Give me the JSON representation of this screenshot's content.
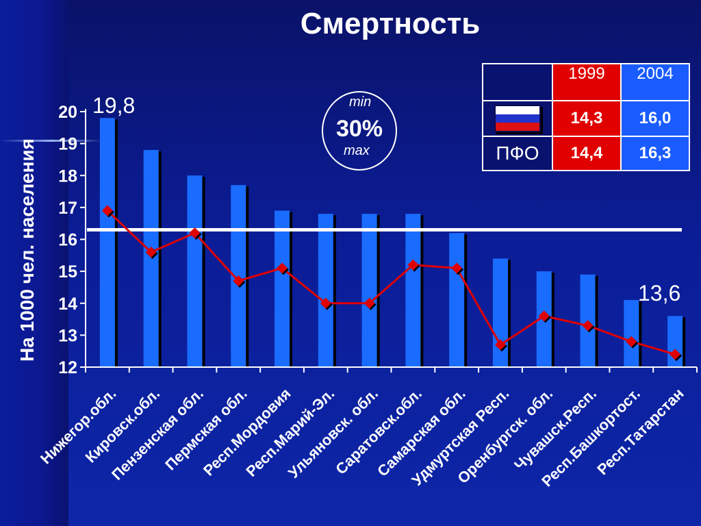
{
  "title": "Смертность",
  "chart_data": {
    "type": "bar",
    "categories": [
      "Нижегор.обл.",
      "Кировск.обл.",
      "Пензенская обл.",
      "Пермская обл.",
      "Респ.Мордовия",
      "Респ.Марий-Эл.",
      "Ульяновск. обл.",
      "Саратовск.обл.",
      "Самарская обл.",
      "Удмуртская Респ.",
      "Оренбургск. обл.",
      "Чувашск.Респ.",
      "Респ.Башкортост.",
      "Респ.Татарстан"
    ],
    "series": [
      {
        "values": [
          19.8,
          18.8,
          18.0,
          17.7,
          16.9,
          16.8,
          16.8,
          16.8,
          16.2,
          15.4,
          15.0,
          14.9,
          14.1,
          13.6
        ]
      },
      {
        "values": [
          16.9,
          15.6,
          16.2,
          14.7,
          15.1,
          14.0,
          14.0,
          15.2,
          15.1,
          12.7,
          13.6,
          13.3,
          12.8,
          12.4
        ]
      }
    ],
    "reference_line": 16.3,
    "ylabel": "На 1000 чел. населения",
    "ylim": [
      12,
      20
    ],
    "yticks": [
      "12",
      "13",
      "14",
      "15",
      "16",
      "17",
      "18",
      "19",
      "20"
    ],
    "colors": {
      "bar": "#1a6cff",
      "line": "#e00000",
      "reference": "#ffffff"
    },
    "grid": false
  },
  "annotations": {
    "max_value": "19,8",
    "min_value": "13,6"
  },
  "minmax": {
    "min": "min",
    "percent": "30%",
    "max": "max"
  },
  "table": {
    "years": [
      "1999",
      "2004"
    ],
    "rows": [
      {
        "label": "",
        "icon": "russia-flag-icon",
        "v1999": "14,3",
        "v2004": "16,0"
      },
      {
        "label": "ПФО",
        "v1999": "14,4",
        "v2004": "16,3"
      }
    ]
  }
}
